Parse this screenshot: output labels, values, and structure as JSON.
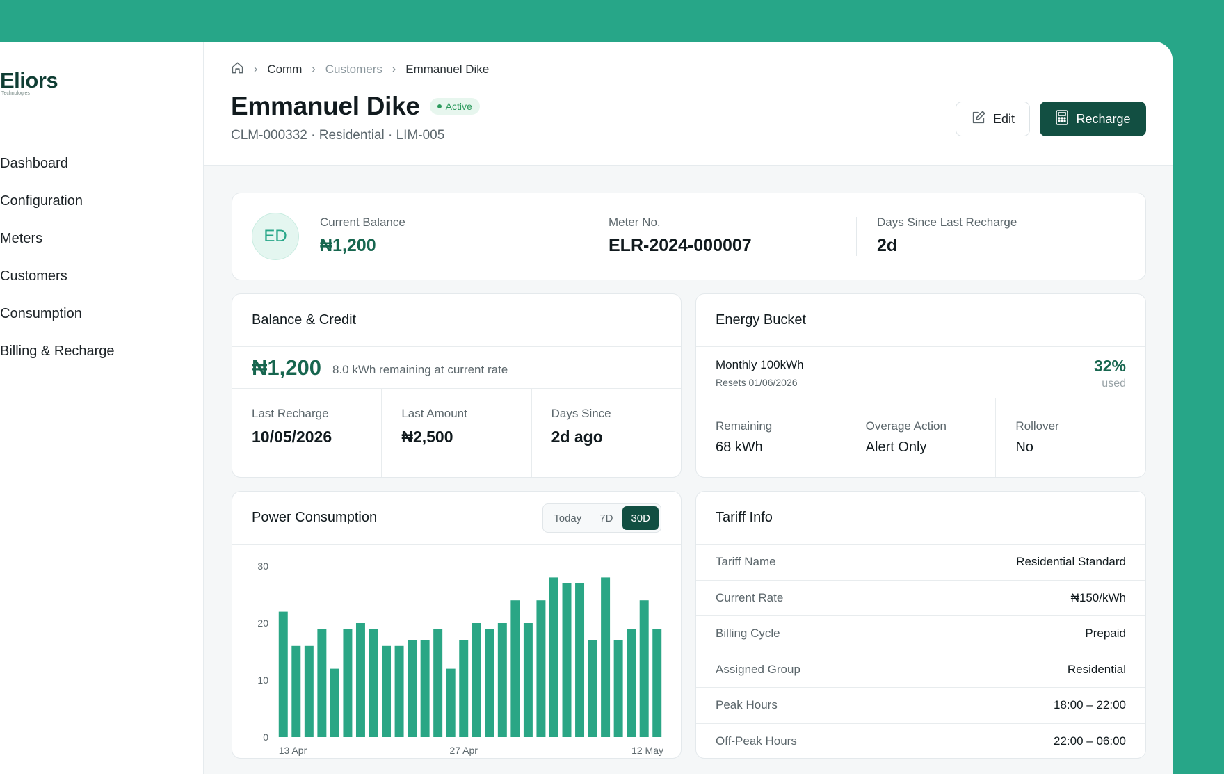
{
  "brand": {
    "name": "Eliors",
    "tagline": "Technologies"
  },
  "sidebar": {
    "items": [
      {
        "label": "Dashboard"
      },
      {
        "label": "Configuration"
      },
      {
        "label": "Meters"
      },
      {
        "label": "Customers"
      },
      {
        "label": "Consumption"
      },
      {
        "label": "Billing & Recharge"
      }
    ]
  },
  "breadcrumb": {
    "home_icon": "home-icon",
    "items": [
      "Comm",
      "Customers",
      "Emmanuel Dike"
    ]
  },
  "customer": {
    "name": "Emmanuel Dike",
    "status": "Active",
    "meta": "CLM-000332 · Residential · LIM-005",
    "initials": "ED"
  },
  "actions": {
    "edit_label": "Edit",
    "recharge_label": "Recharge"
  },
  "summary": {
    "balance_label": "Current Balance",
    "balance_value": "₦1,200",
    "meter_label": "Meter No.",
    "meter_value": "ELR-2024-000007",
    "days_label": "Days Since Last Recharge",
    "days_value": "2d"
  },
  "balance_card": {
    "title": "Balance & Credit",
    "amount": "₦1,200",
    "note": "8.0 kWh remaining at current rate",
    "last_recharge_label": "Last Recharge",
    "last_recharge_value": "10/05/2026",
    "last_amount_label": "Last Amount",
    "last_amount_value": "₦2,500",
    "days_since_label": "Days Since",
    "days_since_value": "2d ago"
  },
  "energy_card": {
    "title": "Energy Bucket",
    "plan": "Monthly 100kWh",
    "resets": "Resets 01/06/2026",
    "percent": "32%",
    "percent_label": "used",
    "remaining_label": "Remaining",
    "remaining_value": "68 kWh",
    "overage_label": "Overage Action",
    "overage_value": "Alert Only",
    "rollover_label": "Rollover",
    "rollover_value": "No"
  },
  "power_card": {
    "title": "Power Consumption",
    "ranges": [
      "Today",
      "7D",
      "30D"
    ],
    "selected_range": "30D"
  },
  "tariff_card": {
    "title": "Tariff Info",
    "rows": [
      {
        "key": "Tariff Name",
        "value": "Residential Standard"
      },
      {
        "key": "Current Rate",
        "value": "₦150/kWh"
      },
      {
        "key": "Billing Cycle",
        "value": "Prepaid"
      },
      {
        "key": "Assigned Group",
        "value": "Residential"
      },
      {
        "key": "Peak Hours",
        "value": "18:00 – 22:00"
      },
      {
        "key": "Off-Peak Hours",
        "value": "22:00 – 06:00"
      }
    ]
  },
  "colors": {
    "accent": "#27a688",
    "primary": "#124f42",
    "bar": "#2aa685"
  },
  "chart_data": {
    "type": "bar",
    "x_tick_labels": [
      "13 Apr",
      "27 Apr",
      "12 May"
    ],
    "values": [
      22,
      16,
      16,
      19,
      12,
      19,
      20,
      19,
      16,
      16,
      17,
      17,
      19,
      12,
      17,
      20,
      19,
      20,
      24,
      20,
      24,
      28,
      27,
      27,
      17,
      28,
      17,
      19,
      24,
      19
    ],
    "ylim": [
      0,
      30
    ],
    "y_ticks": [
      0,
      10,
      20,
      30
    ],
    "grid": false
  }
}
